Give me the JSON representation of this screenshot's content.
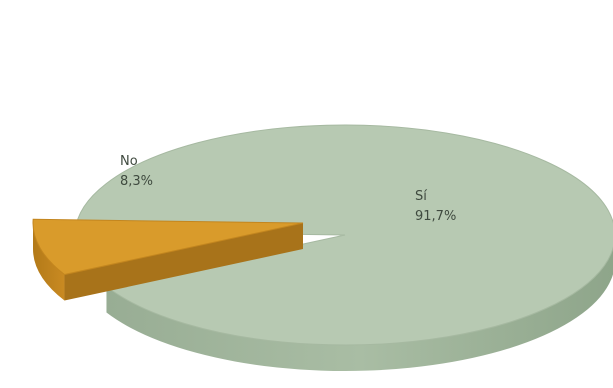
{
  "chart_data": {
    "type": "pie",
    "title": "",
    "legend": "none",
    "grid": false,
    "slices": [
      {
        "label": "Sí",
        "value_label": "91,7%",
        "value": 91.7,
        "color": "#b7c9b2"
      },
      {
        "label": "No",
        "value_label": "8,3%",
        "value": 8.3,
        "color": "#d99b2b"
      }
    ]
  }
}
